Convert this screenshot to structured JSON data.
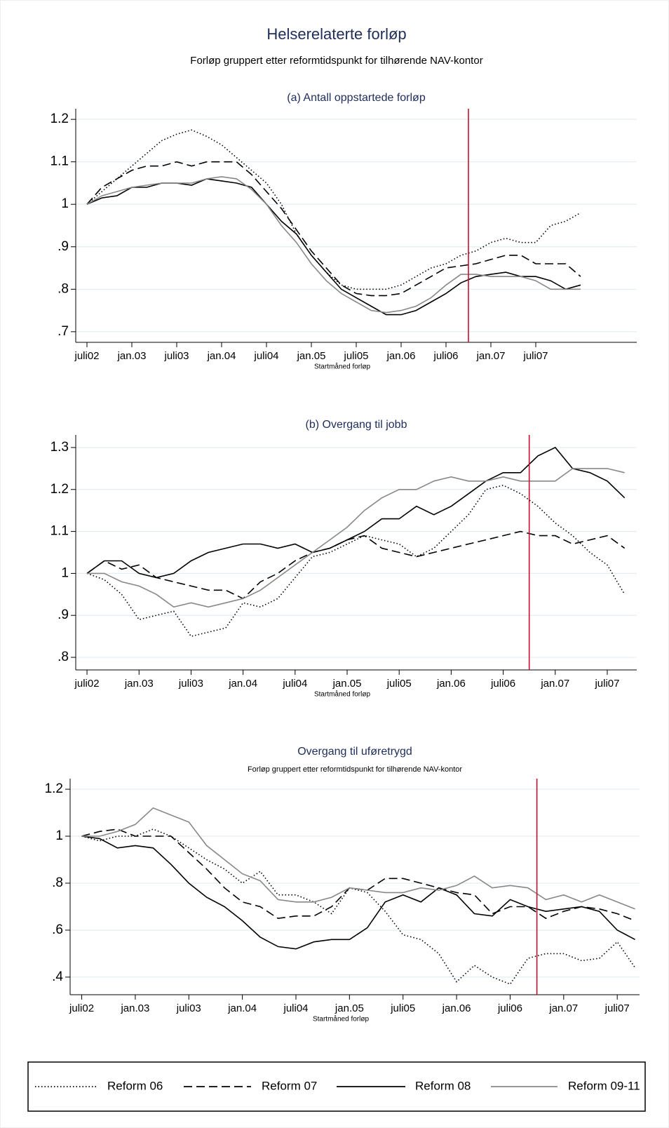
{
  "title": "Helserelaterte forløp",
  "subtitle": "Forløp gruppert etter reformtidspunkt for tilhørende NAV-kontor",
  "chart_data": [
    {
      "type": "line",
      "title": "(a) Antall oppstartede forløp",
      "xlabel": "Startmåned forløp",
      "x": [
        0,
        2,
        4,
        6,
        8,
        10,
        12,
        14,
        16,
        18,
        20,
        22,
        24,
        26,
        28,
        30,
        32,
        34,
        36,
        38,
        40,
        42,
        44,
        46,
        48,
        50,
        52,
        54,
        56,
        58,
        60,
        62,
        64,
        66
      ],
      "xlim": [
        -1.5,
        73.5
      ],
      "xticks": [
        {
          "value": 0,
          "label": "juli02"
        },
        {
          "value": 6,
          "label": "jan.03"
        },
        {
          "value": 12,
          "label": "juli03"
        },
        {
          "value": 18,
          "label": "jan.04"
        },
        {
          "value": 24,
          "label": "juli04"
        },
        {
          "value": 30,
          "label": "jan.05"
        },
        {
          "value": 36,
          "label": "juli05"
        },
        {
          "value": 42,
          "label": "jan.06"
        },
        {
          "value": 48,
          "label": "juli06"
        },
        {
          "value": 54,
          "label": "jan.07"
        },
        {
          "value": 60,
          "label": "juli07"
        }
      ],
      "ylim": [
        0.675,
        1.225
      ],
      "yticks": [
        {
          "value": 0.7,
          "label": ".7"
        },
        {
          "value": 0.8,
          "label": ".8"
        },
        {
          "value": 0.9,
          "label": ".9"
        },
        1,
        1.1,
        1.2
      ],
      "grid": true,
      "vline": 51,
      "vline_color": "#c8102e",
      "series": [
        {
          "name": "Reform 06",
          "color": "#000000",
          "dash": "dotted",
          "values": [
            1,
            1.03,
            1.06,
            1.09,
            1.12,
            1.15,
            1.165,
            1.175,
            1.16,
            1.14,
            1.11,
            1.08,
            1.05,
            1.0,
            0.93,
            0.88,
            0.84,
            0.81,
            0.8,
            0.8,
            0.8,
            0.81,
            0.83,
            0.85,
            0.86,
            0.88,
            0.89,
            0.91,
            0.92,
            0.91,
            0.91,
            0.95,
            0.96,
            0.98
          ]
        },
        {
          "name": "Reform 07",
          "color": "#000000",
          "dash": "dashed",
          "values": [
            1,
            1.04,
            1.06,
            1.08,
            1.09,
            1.09,
            1.1,
            1.09,
            1.1,
            1.1,
            1.1,
            1.07,
            1.03,
            0.99,
            0.94,
            0.89,
            0.85,
            0.81,
            0.79,
            0.785,
            0.785,
            0.79,
            0.81,
            0.83,
            0.85,
            0.855,
            0.86,
            0.87,
            0.88,
            0.88,
            0.86,
            0.86,
            0.86,
            0.83
          ]
        },
        {
          "name": "Reform 08",
          "color": "#000000",
          "dash": "solid",
          "values": [
            1,
            1.015,
            1.02,
            1.04,
            1.04,
            1.05,
            1.05,
            1.045,
            1.06,
            1.055,
            1.05,
            1.04,
            1.0,
            0.96,
            0.93,
            0.88,
            0.84,
            0.8,
            0.78,
            0.76,
            0.74,
            0.74,
            0.75,
            0.77,
            0.79,
            0.815,
            0.83,
            0.835,
            0.84,
            0.83,
            0.83,
            0.82,
            0.8,
            0.81
          ]
        },
        {
          "name": "Reform 09-11",
          "color": "#888888",
          "dash": "solid",
          "values": [
            1,
            1.02,
            1.03,
            1.04,
            1.045,
            1.05,
            1.05,
            1.05,
            1.06,
            1.065,
            1.06,
            1.035,
            1.0,
            0.95,
            0.91,
            0.86,
            0.82,
            0.79,
            0.77,
            0.75,
            0.745,
            0.75,
            0.76,
            0.78,
            0.81,
            0.835,
            0.835,
            0.83,
            0.83,
            0.83,
            0.82,
            0.8,
            0.8,
            0.8
          ]
        }
      ]
    },
    {
      "type": "line",
      "title": "(b) Overgang til jobb",
      "xlabel": "Startmåned forløp",
      "x": [
        0,
        2,
        4,
        6,
        8,
        10,
        12,
        14,
        16,
        18,
        20,
        22,
        24,
        26,
        28,
        30,
        32,
        34,
        36,
        38,
        40,
        42,
        44,
        46,
        48,
        50,
        52,
        54,
        56,
        58,
        60,
        62
      ],
      "xlim": [
        -1.3,
        63.4
      ],
      "xticks": [
        {
          "value": 0,
          "label": "juli02"
        },
        {
          "value": 6,
          "label": "jan.03"
        },
        {
          "value": 12,
          "label": "juli03"
        },
        {
          "value": 18,
          "label": "jan.04"
        },
        {
          "value": 24,
          "label": "juli04"
        },
        {
          "value": 30,
          "label": "jan.05"
        },
        {
          "value": 36,
          "label": "juli05"
        },
        {
          "value": 42,
          "label": "jan.06"
        },
        {
          "value": 48,
          "label": "juli06"
        },
        {
          "value": 54,
          "label": "jan.07"
        },
        {
          "value": 60,
          "label": "juli07"
        }
      ],
      "ylim": [
        0.77,
        1.33
      ],
      "yticks": [
        {
          "value": 0.8,
          "label": ".8"
        },
        {
          "value": 0.9,
          "label": ".9"
        },
        1,
        1.1,
        1.2,
        1.3
      ],
      "grid": true,
      "vline": 51,
      "vline_color": "#c8102e",
      "series": [
        {
          "color": "#000000",
          "dash": "dotted",
          "values": [
            1,
            0.985,
            0.95,
            0.89,
            0.9,
            0.91,
            0.85,
            0.86,
            0.87,
            0.93,
            0.92,
            0.94,
            0.99,
            1.04,
            1.05,
            1.07,
            1.09,
            1.08,
            1.07,
            1.04,
            1.06,
            1.1,
            1.14,
            1.2,
            1.21,
            1.19,
            1.16,
            1.12,
            1.09,
            1.05,
            1.02,
            0.95
          ]
        },
        {
          "color": "#000000",
          "dash": "dashed",
          "values": [
            1,
            1.03,
            1.01,
            1.02,
            0.99,
            0.98,
            0.97,
            0.96,
            0.96,
            0.94,
            0.98,
            1.0,
            1.03,
            1.05,
            1.06,
            1.08,
            1.09,
            1.06,
            1.05,
            1.04,
            1.05,
            1.06,
            1.07,
            1.08,
            1.09,
            1.1,
            1.09,
            1.09,
            1.07,
            1.08,
            1.09,
            1.06
          ]
        },
        {
          "color": "#000000",
          "dash": "solid",
          "values": [
            1,
            1.03,
            1.03,
            1.0,
            0.99,
            1.0,
            1.03,
            1.05,
            1.06,
            1.07,
            1.07,
            1.06,
            1.07,
            1.05,
            1.06,
            1.08,
            1.1,
            1.13,
            1.13,
            1.16,
            1.14,
            1.16,
            1.19,
            1.22,
            1.24,
            1.24,
            1.28,
            1.3,
            1.25,
            1.24,
            1.22,
            1.18
          ]
        },
        {
          "color": "#888888",
          "dash": "solid",
          "values": [
            1,
            1.0,
            0.98,
            0.97,
            0.95,
            0.92,
            0.93,
            0.92,
            0.93,
            0.94,
            0.96,
            0.99,
            1.02,
            1.05,
            1.08,
            1.11,
            1.15,
            1.18,
            1.2,
            1.2,
            1.22,
            1.23,
            1.22,
            1.22,
            1.23,
            1.22,
            1.22,
            1.22,
            1.25,
            1.25,
            1.25,
            1.24
          ]
        }
      ]
    },
    {
      "type": "line",
      "title": "Overgang til uføretrygd",
      "subtitle": "Forløp gruppert etter reformtidspunkt for tilhørende NAV-kontor",
      "xlabel": "Startmåned forløp",
      "x": [
        0,
        2,
        4,
        6,
        8,
        10,
        12,
        14,
        16,
        18,
        20,
        22,
        24,
        26,
        28,
        30,
        32,
        34,
        36,
        38,
        40,
        42,
        44,
        46,
        48,
        50,
        52,
        54,
        56,
        58,
        60,
        62
      ],
      "xlim": [
        -1.3,
        62.5
      ],
      "xticks": [
        {
          "value": 0,
          "label": "juli02"
        },
        {
          "value": 6,
          "label": "jan.03"
        },
        {
          "value": 12,
          "label": "juli03"
        },
        {
          "value": 18,
          "label": "jan.04"
        },
        {
          "value": 24,
          "label": "juli04"
        },
        {
          "value": 30,
          "label": "jan.05"
        },
        {
          "value": 36,
          "label": "juli05"
        },
        {
          "value": 42,
          "label": "jan.06"
        },
        {
          "value": 48,
          "label": "juli06"
        },
        {
          "value": 54,
          "label": "jan.07"
        },
        {
          "value": 60,
          "label": "juli07"
        }
      ],
      "ylim": [
        0.325,
        1.245
      ],
      "yticks": [
        {
          "value": 0.4,
          "label": ".4"
        },
        {
          "value": 0.6,
          "label": ".6"
        },
        {
          "value": 0.8,
          "label": ".8"
        },
        1,
        1.2
      ],
      "grid": true,
      "vline": 51,
      "vline_color": "#c8102e",
      "series": [
        {
          "color": "#000000",
          "dash": "dotted",
          "values": [
            1,
            0.98,
            1.0,
            1.0,
            1.03,
            1.0,
            0.95,
            0.9,
            0.86,
            0.8,
            0.85,
            0.75,
            0.75,
            0.72,
            0.67,
            0.78,
            0.76,
            0.68,
            0.58,
            0.56,
            0.5,
            0.38,
            0.45,
            0.4,
            0.37,
            0.48,
            0.5,
            0.5,
            0.47,
            0.48,
            0.55,
            0.44
          ]
        },
        {
          "color": "#000000",
          "dash": "dashed",
          "values": [
            1,
            1.02,
            1.03,
            1.0,
            1.0,
            1.0,
            0.93,
            0.86,
            0.78,
            0.72,
            0.7,
            0.65,
            0.66,
            0.66,
            0.7,
            0.78,
            0.77,
            0.82,
            0.82,
            0.8,
            0.78,
            0.76,
            0.75,
            0.67,
            0.7,
            0.7,
            0.65,
            0.68,
            0.7,
            0.69,
            0.67,
            0.64
          ]
        },
        {
          "color": "#000000",
          "dash": "solid",
          "values": [
            1,
            0.99,
            0.95,
            0.96,
            0.95,
            0.88,
            0.8,
            0.74,
            0.7,
            0.64,
            0.57,
            0.53,
            0.52,
            0.55,
            0.56,
            0.56,
            0.61,
            0.72,
            0.75,
            0.72,
            0.78,
            0.75,
            0.67,
            0.66,
            0.73,
            0.7,
            0.68,
            0.69,
            0.7,
            0.68,
            0.6,
            0.56
          ]
        },
        {
          "color": "#888888",
          "dash": "solid",
          "values": [
            1,
            1.0,
            1.02,
            1.05,
            1.12,
            1.09,
            1.06,
            0.96,
            0.9,
            0.84,
            0.81,
            0.73,
            0.72,
            0.72,
            0.74,
            0.78,
            0.77,
            0.76,
            0.76,
            0.78,
            0.77,
            0.79,
            0.83,
            0.78,
            0.79,
            0.78,
            0.73,
            0.75,
            0.72,
            0.75,
            0.72,
            0.69
          ]
        }
      ]
    }
  ]
}
